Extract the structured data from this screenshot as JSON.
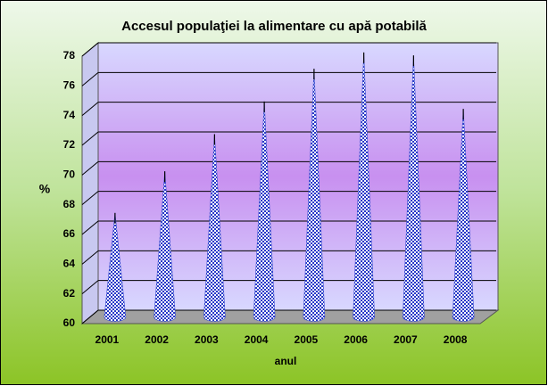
{
  "chart_data": {
    "type": "cone",
    "title": "Accesul populaţiei la alimentare cu apă potabilă",
    "x_label": "anul",
    "y_label": "%",
    "categories": [
      "2001",
      "2002",
      "2003",
      "2004",
      "2005",
      "2006",
      "2007",
      "2008"
    ],
    "values": [
      67,
      69.8,
      72.3,
      74.5,
      76.7,
      77.8,
      77.6,
      74
    ],
    "color": "#3a4fd0",
    "ylim": [
      60,
      78
    ],
    "yticks": [
      60,
      62,
      64,
      66,
      68,
      70,
      72,
      74,
      76,
      78
    ],
    "grid": true
  }
}
